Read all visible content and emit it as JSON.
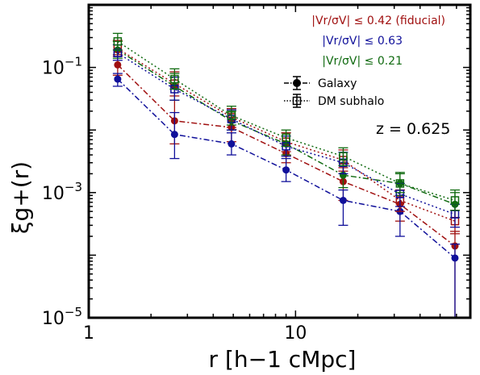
{
  "chart_data": {
    "type": "scatter",
    "x_scale": "log",
    "y_scale": "log",
    "xlim": [
      1,
      70
    ],
    "ylim": [
      1e-05,
      1
    ],
    "x_ticks": [
      1,
      10
    ],
    "x_tick_labels": [
      "1",
      "10"
    ],
    "y_ticks": [
      1e-05,
      0.001,
      0.1
    ],
    "y_tick_labels": [
      "10−5",
      "10−3",
      "10−1"
    ],
    "xlabel": "r [h−1 cMpc]",
    "ylabel": "ξg+(r)",
    "annotation": "z = 0.625",
    "legend_series": [
      "|Vr/σV| ≤ 0.42 (fiducial)",
      "|Vr/σV| ≤ 0.63",
      "|Vr/σV| ≤ 0.21"
    ],
    "legend_markers": [
      "Galaxy",
      "DM subhalo"
    ],
    "legend_placement": "top-right",
    "grid": false,
    "series": [
      {
        "name": "Galaxy |Vr/σV| ≤ 0.42 (fiducial)",
        "kind": "galaxy",
        "color": "#a01010",
        "x": [
          1.38,
          2.6,
          4.9,
          9.0,
          17.0,
          32.0,
          59.0
        ],
        "y": [
          0.11,
          0.014,
          0.011,
          0.0042,
          0.0015,
          0.00065,
          0.00014
        ],
        "ylo": [
          0.075,
          0.006,
          0.0065,
          0.003,
          0.00075,
          0.00035,
          1e-05
        ],
        "yhi": [
          0.16,
          0.03,
          0.016,
          0.006,
          0.0025,
          0.0011,
          0.00024
        ]
      },
      {
        "name": "Galaxy |Vr/σV| ≤ 0.63",
        "kind": "galaxy",
        "color": "#10109a",
        "x": [
          1.38,
          2.6,
          4.9,
          9.0,
          17.0,
          32.0,
          59.0
        ],
        "y": [
          0.065,
          0.0085,
          0.006,
          0.0023,
          0.00075,
          0.0005,
          9e-05
        ],
        "ylo": [
          0.05,
          0.0035,
          0.004,
          0.0015,
          0.0003,
          0.0002,
          1e-05
        ],
        "yhi": [
          0.08,
          0.019,
          0.009,
          0.0035,
          0.0011,
          0.0009,
          0.00015
        ]
      },
      {
        "name": "Galaxy |Vr/σV| ≤ 0.21",
        "kind": "galaxy",
        "color": "#106a10",
        "x": [
          1.38,
          2.6,
          4.9,
          9.0,
          17.0,
          32.0,
          59.0
        ],
        "y": [
          0.19,
          0.05,
          0.014,
          0.006,
          0.0019,
          0.0014,
          0.00065
        ],
        "ylo": [
          0.14,
          0.03,
          0.01,
          0.004,
          0.0012,
          0.0009,
          0.0004
        ],
        "yhi": [
          0.26,
          0.08,
          0.02,
          0.009,
          0.003,
          0.0021,
          0.001
        ]
      },
      {
        "name": "DM subhalo |Vr/σV| ≤ 0.42 (fiducial)",
        "kind": "dm",
        "color": "#a01010",
        "x": [
          1.38,
          2.6,
          4.9,
          9.0,
          17.0,
          32.0,
          59.0
        ],
        "y": [
          0.2,
          0.055,
          0.016,
          0.0065,
          0.0033,
          0.00075,
          0.00035
        ],
        "ylo": [
          0.15,
          0.035,
          0.011,
          0.0045,
          0.0022,
          0.0005,
          0.00022
        ],
        "yhi": [
          0.27,
          0.085,
          0.022,
          0.009,
          0.0048,
          0.0011,
          0.00052
        ]
      },
      {
        "name": "DM subhalo |Vr/σV| ≤ 0.63",
        "kind": "dm",
        "color": "#10109a",
        "x": [
          1.38,
          2.6,
          4.9,
          9.0,
          17.0,
          32.0,
          59.0
        ],
        "y": [
          0.17,
          0.045,
          0.015,
          0.0055,
          0.003,
          0.00095,
          0.00045
        ],
        "ylo": [
          0.13,
          0.03,
          0.01,
          0.0038,
          0.002,
          0.0006,
          0.00028
        ],
        "yhi": [
          0.23,
          0.07,
          0.021,
          0.008,
          0.0044,
          0.0014,
          0.00065
        ]
      },
      {
        "name": "DM subhalo |Vr/σV| ≤ 0.21",
        "kind": "dm",
        "color": "#106a10",
        "x": [
          1.38,
          2.6,
          4.9,
          9.0,
          17.0,
          32.0,
          59.0
        ],
        "y": [
          0.26,
          0.065,
          0.017,
          0.0075,
          0.0038,
          0.0014,
          0.00075
        ],
        "ylo": [
          0.19,
          0.045,
          0.012,
          0.0055,
          0.0027,
          0.001,
          0.00052
        ],
        "yhi": [
          0.35,
          0.095,
          0.024,
          0.01,
          0.0052,
          0.002,
          0.0011
        ]
      }
    ]
  }
}
